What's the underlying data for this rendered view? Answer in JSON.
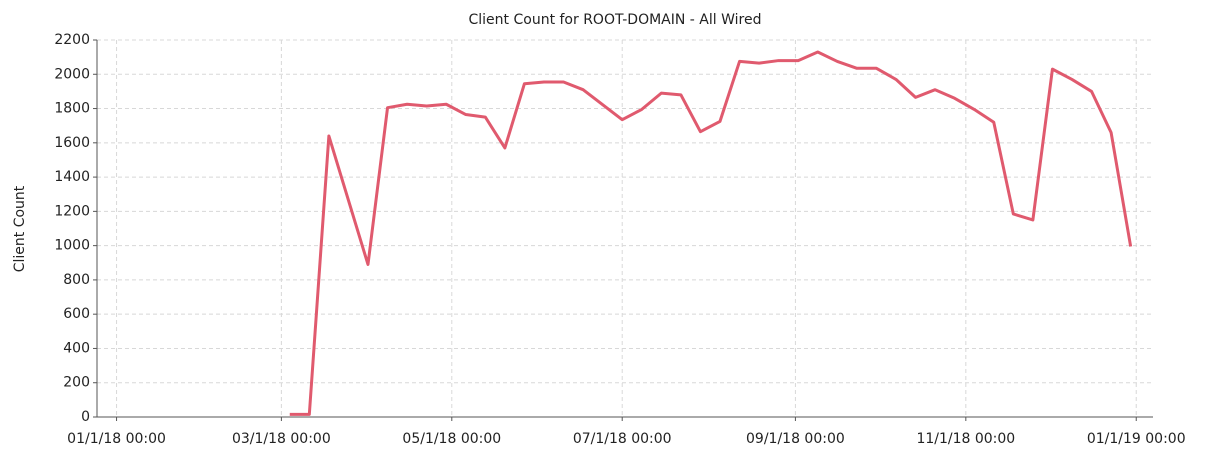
{
  "chart_data": {
    "type": "line",
    "title": "Client Count for ROOT-DOMAIN - All Wired",
    "y_label": "Client Count",
    "x": [
      "2018-03-04",
      "2018-03-11",
      "2018-03-18",
      "2018-04-01",
      "2018-04-08",
      "2018-04-15",
      "2018-04-22",
      "2018-04-29",
      "2018-05-06",
      "2018-05-13",
      "2018-05-20",
      "2018-05-27",
      "2018-06-03",
      "2018-06-10",
      "2018-06-17",
      "2018-07-01",
      "2018-07-08",
      "2018-07-15",
      "2018-07-22",
      "2018-07-29",
      "2018-08-05",
      "2018-08-12",
      "2018-08-19",
      "2018-08-26",
      "2018-09-02",
      "2018-09-09",
      "2018-09-16",
      "2018-09-23",
      "2018-09-30",
      "2018-10-07",
      "2018-10-14",
      "2018-10-21",
      "2018-10-28",
      "2018-11-04",
      "2018-11-11",
      "2018-11-18",
      "2018-11-25",
      "2018-12-02",
      "2018-12-09",
      "2018-12-16",
      "2018-12-23",
      "2018-12-30"
    ],
    "series": [
      {
        "name": "Client Count",
        "color": "#e05a6e",
        "values": [
          15,
          15,
          1640,
          890,
          1805,
          1825,
          1815,
          1825,
          1765,
          1750,
          1570,
          1945,
          1955,
          1955,
          1910,
          1735,
          1795,
          1890,
          1880,
          1665,
          1725,
          2075,
          2065,
          2080,
          2080,
          2130,
          2075,
          2035,
          2035,
          1970,
          1865,
          1910,
          1860,
          1795,
          1720,
          1185,
          1150,
          2030,
          1970,
          1900,
          1660,
          995
        ]
      }
    ],
    "xlim": [
      "2017-12-25",
      "2019-01-07"
    ],
    "xticks": [
      {
        "value": "2018-01-01",
        "label": "01/1/18 00:00"
      },
      {
        "value": "2018-03-01",
        "label": "03/1/18 00:00"
      },
      {
        "value": "2018-05-01",
        "label": "05/1/18 00:00"
      },
      {
        "value": "2018-07-01",
        "label": "07/1/18 00:00"
      },
      {
        "value": "2018-09-01",
        "label": "09/1/18 00:00"
      },
      {
        "value": "2018-11-01",
        "label": "11/1/18 00:00"
      },
      {
        "value": "2019-01-01",
        "label": "01/1/19 00:00"
      }
    ],
    "ylim": [
      0,
      2200
    ],
    "yticks": [
      0,
      200,
      400,
      600,
      800,
      1000,
      1200,
      1400,
      1600,
      1800,
      2000,
      2200
    ],
    "grid": true
  }
}
